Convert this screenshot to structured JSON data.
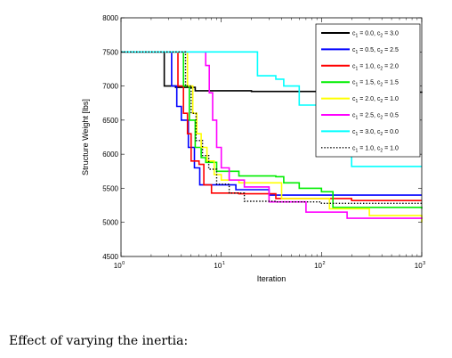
{
  "caption": "Effect of varying the inertia:",
  "chart_data": {
    "type": "line",
    "title": "",
    "xlabel": "Iteration",
    "ylabel": "Structure Weight [lbs]",
    "x_scale": "log",
    "xlim": [
      1,
      1000
    ],
    "ylim": [
      4500,
      8000
    ],
    "x_ticks": [
      {
        "value": 1,
        "base": "10",
        "exp": "0"
      },
      {
        "value": 10,
        "base": "10",
        "exp": "1"
      },
      {
        "value": 100,
        "base": "10",
        "exp": "2"
      },
      {
        "value": 1000,
        "base": "10",
        "exp": "3"
      }
    ],
    "y_ticks": [
      "4500",
      "5000",
      "5500",
      "6000",
      "6500",
      "7000",
      "7500",
      "8000"
    ],
    "grid": false,
    "legend_position": "top-right",
    "series": [
      {
        "label": {
          "a": "c",
          "a_sub": "1",
          "a_val": " = 0.0, c",
          "b_sub": "2",
          "b_val": " = 3.0"
        },
        "color": "#000000",
        "dash": "solid",
        "points": [
          [
            1,
            7500
          ],
          [
            2.2,
            7500
          ],
          [
            2.7,
            7000
          ],
          [
            3.5,
            6980
          ],
          [
            5.5,
            6930
          ],
          [
            20,
            6920
          ],
          [
            120,
            6910
          ],
          [
            1000,
            6900
          ]
        ]
      },
      {
        "label": {
          "a": "c",
          "a_sub": "1",
          "a_val": " = 0.5, c",
          "b_sub": "2",
          "b_val": " = 2.5"
        },
        "color": "#0000ff",
        "dash": "solid",
        "points": [
          [
            1,
            7500
          ],
          [
            2.7,
            7500
          ],
          [
            3.2,
            7000
          ],
          [
            3.6,
            6700
          ],
          [
            4,
            6500
          ],
          [
            4.7,
            6100
          ],
          [
            5.4,
            5800
          ],
          [
            6.1,
            5550
          ],
          [
            11,
            5550
          ],
          [
            14,
            5480
          ],
          [
            30,
            5400
          ],
          [
            200,
            5400
          ],
          [
            1000,
            5400
          ]
        ]
      },
      {
        "label": {
          "a": "c",
          "a_sub": "1",
          "a_val": " = 1.0, c",
          "b_sub": "2",
          "b_val": " = 2.0"
        },
        "color": "#ff0000",
        "dash": "solid",
        "points": [
          [
            1,
            7500
          ],
          [
            3.3,
            7500
          ],
          [
            3.7,
            7000
          ],
          [
            4.2,
            6600
          ],
          [
            4.6,
            6300
          ],
          [
            5,
            5900
          ],
          [
            6,
            5850
          ],
          [
            6.7,
            5550
          ],
          [
            8,
            5430
          ],
          [
            15,
            5420
          ],
          [
            35,
            5350
          ],
          [
            200,
            5320
          ],
          [
            1000,
            5320
          ]
        ]
      },
      {
        "label": {
          "a": "c",
          "a_sub": "1",
          "a_val": " = 1.5, c",
          "b_sub": "2",
          "b_val": " = 1.5"
        },
        "color": "#00ee00",
        "dash": "solid",
        "points": [
          [
            1,
            7500
          ],
          [
            3.8,
            7500
          ],
          [
            4.2,
            7000
          ],
          [
            4.8,
            6500
          ],
          [
            5.5,
            6100
          ],
          [
            6.3,
            5950
          ],
          [
            7,
            5880
          ],
          [
            9,
            5750
          ],
          [
            15,
            5680
          ],
          [
            35,
            5670
          ],
          [
            42,
            5580
          ],
          [
            60,
            5500
          ],
          [
            100,
            5450
          ],
          [
            130,
            5220
          ],
          [
            1000,
            5200
          ]
        ]
      },
      {
        "label": {
          "a": "c",
          "a_sub": "1",
          "a_val": " = 2.0, c",
          "b_sub": "2",
          "b_val": " = 1.0"
        },
        "color": "#ffff00",
        "dash": "solid",
        "points": [
          [
            1,
            7500
          ],
          [
            4.2,
            7500
          ],
          [
            4.6,
            7000
          ],
          [
            5.2,
            6600
          ],
          [
            5.7,
            6300
          ],
          [
            6.3,
            6100
          ],
          [
            7.2,
            5900
          ],
          [
            8.5,
            5700
          ],
          [
            10,
            5620
          ],
          [
            15,
            5580
          ],
          [
            40,
            5350
          ],
          [
            120,
            5200
          ],
          [
            300,
            5100
          ],
          [
            1000,
            5000
          ]
        ]
      },
      {
        "label": {
          "a": "c",
          "a_sub": "1",
          "a_val": " = 2.5, c",
          "b_sub": "2",
          "b_val": " = 0.5"
        },
        "color": "#ff00ff",
        "dash": "solid",
        "points": [
          [
            1,
            7500
          ],
          [
            6.3,
            7500
          ],
          [
            7,
            7300
          ],
          [
            7.6,
            6900
          ],
          [
            8.2,
            6500
          ],
          [
            9,
            6100
          ],
          [
            10,
            5800
          ],
          [
            12,
            5620
          ],
          [
            17,
            5520
          ],
          [
            30,
            5300
          ],
          [
            70,
            5150
          ],
          [
            180,
            5060
          ],
          [
            1000,
            5050
          ]
        ]
      },
      {
        "label": {
          "a": "c",
          "a_sub": "1",
          "a_val": " = 3.0, c",
          "b_sub": "2",
          "b_val": " = 0.0"
        },
        "color": "#00ffff",
        "dash": "solid",
        "points": [
          [
            1,
            7500
          ],
          [
            21,
            7500
          ],
          [
            23,
            7150
          ],
          [
            35,
            7100
          ],
          [
            42,
            7000
          ],
          [
            60,
            6720
          ],
          [
            120,
            6700
          ],
          [
            155,
            6050
          ],
          [
            200,
            5820
          ],
          [
            1000,
            5820
          ]
        ]
      },
      {
        "label": {
          "a": "c",
          "a_sub": "1",
          "a_val": " = 1.0, c",
          "b_sub": "2",
          "b_val": " = 1.0"
        },
        "color": "#000000",
        "dash": "dotted",
        "points": [
          [
            1,
            7500
          ],
          [
            3.9,
            7500
          ],
          [
            4.4,
            7000
          ],
          [
            5,
            6600
          ],
          [
            5.6,
            6200
          ],
          [
            6.5,
            5980
          ],
          [
            7.5,
            5780
          ],
          [
            9,
            5560
          ],
          [
            12,
            5430
          ],
          [
            17,
            5310
          ],
          [
            35,
            5300
          ],
          [
            100,
            5280
          ],
          [
            1000,
            5280
          ]
        ]
      }
    ]
  }
}
